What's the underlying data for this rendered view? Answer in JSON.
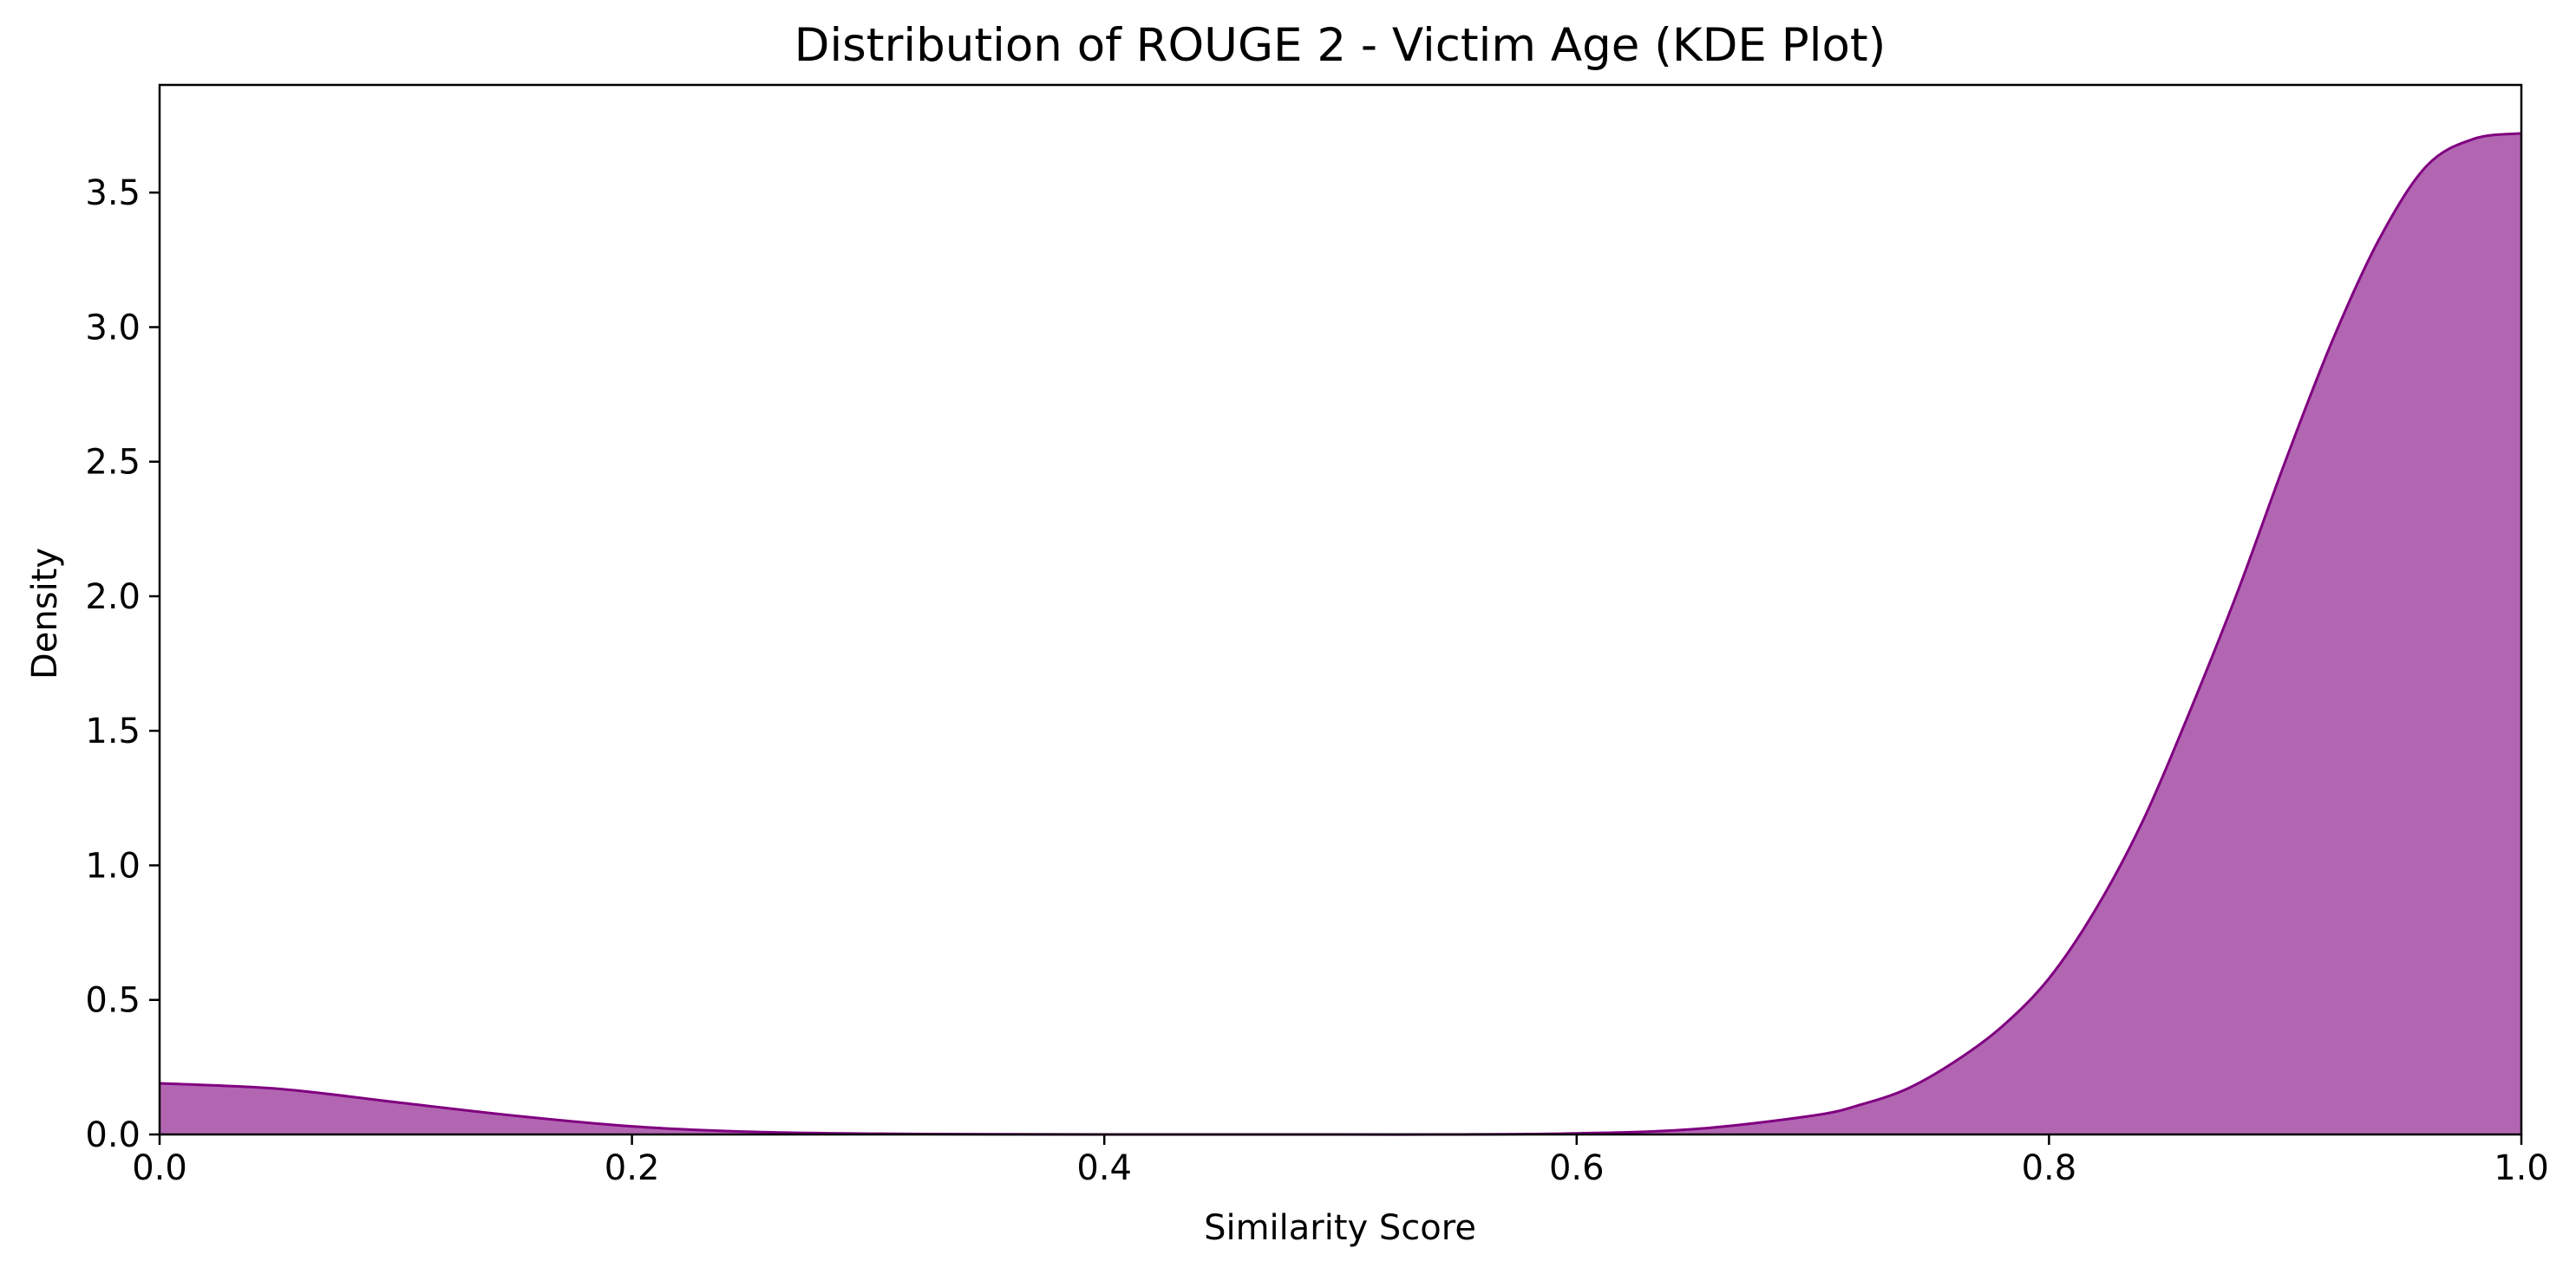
{
  "chart_data": {
    "type": "area",
    "title": "Distribution of ROUGE 2 - Victim Age (KDE Plot)",
    "xlabel": "Similarity Score",
    "ylabel": "Density",
    "xlim": [
      0.0,
      1.0
    ],
    "ylim": [
      0.0,
      3.9
    ],
    "x_ticks": [
      "0.0",
      "0.2",
      "0.4",
      "0.6",
      "0.8",
      "1.0"
    ],
    "y_ticks": [
      "0.0",
      "0.5",
      "1.0",
      "1.5",
      "2.0",
      "2.5",
      "3.0",
      "3.5"
    ],
    "grid": false,
    "legend": "none",
    "colors": {
      "fill": "#b266b2",
      "line": "#800080",
      "axes": "#000000"
    },
    "series": [
      {
        "x": [
          0.0,
          0.05,
          0.1,
          0.15,
          0.2,
          0.25,
          0.3,
          0.35,
          0.4,
          0.45,
          0.5,
          0.55,
          0.6,
          0.65,
          0.7,
          0.72,
          0.74,
          0.76,
          0.78,
          0.8,
          0.82,
          0.84,
          0.86,
          0.88,
          0.9,
          0.92,
          0.94,
          0.96,
          0.98,
          1.0
        ],
        "y": [
          0.19,
          0.17,
          0.12,
          0.07,
          0.03,
          0.01,
          0.003,
          0.001,
          0.0,
          0.0,
          0.0,
          0.0,
          0.004,
          0.02,
          0.07,
          0.11,
          0.17,
          0.27,
          0.4,
          0.58,
          0.84,
          1.17,
          1.58,
          2.02,
          2.5,
          2.95,
          3.33,
          3.6,
          3.7,
          3.72
        ]
      }
    ]
  }
}
